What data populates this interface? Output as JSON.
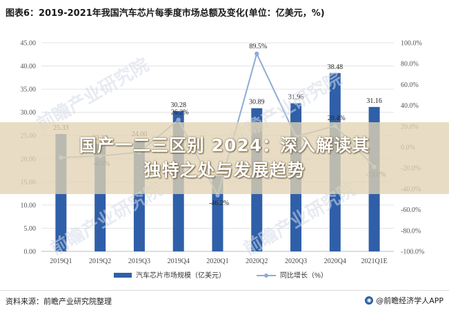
{
  "title": "图表6：2019-2021年我国汽车芯片每季度市场总额及变化(单位：亿美元，%)",
  "overlay": {
    "line1": "国产一二三区别 2024：深入解读其",
    "line2": "独特之处与发展趋势"
  },
  "watermark": "前瞻产业研究院",
  "footer": {
    "source": "资料来源：前瞻产业研究院整理",
    "brand": "@前瞻经济学人APP"
  },
  "chart_data": {
    "type": "bar",
    "categories": [
      "2019Q1",
      "2019Q2",
      "2019Q3",
      "2019Q4",
      "2020Q1",
      "2020Q2",
      "2020Q3",
      "2020Q4",
      "2021Q1E"
    ],
    "series": [
      {
        "name": "汽车芯片市场规模（亿美元）",
        "type": "bar",
        "axis": "left",
        "color": "#2f5fa8",
        "values": [
          25.33,
          23.18,
          24.0,
          30.28,
          16.3,
          30.89,
          31.96,
          38.48,
          31.16
        ],
        "labels": [
          "25.33",
          "23.18",
          "24.00",
          "30.28",
          "",
          "30.89",
          "31.96",
          "38.48",
          "31.16"
        ]
      },
      {
        "name": "同比增长（%）",
        "type": "line",
        "axis": "right",
        "color": "#8eaad6",
        "values": [
          -10.0,
          -8.5,
          -5.0,
          26.2,
          -46.2,
          89.5,
          10.0,
          20.4,
          -19.0
        ],
        "labels": [
          "",
          "-8.5%",
          "",
          "26.2%",
          "-46.2%",
          "89.5%",
          "",
          "20.4%",
          "-19.0%"
        ]
      }
    ],
    "y_left": {
      "min": 0,
      "max": 45,
      "step": 5,
      "tick_labels": [
        "0.00",
        "5.00",
        "10.00",
        "15.00",
        "20.00",
        "25.00",
        "30.00",
        "35.00",
        "40.00",
        "45.00"
      ]
    },
    "y_right": {
      "min": -100,
      "max": 100,
      "step": 20,
      "tick_labels": [
        "-100.0%",
        "-80.0%",
        "-60.0%",
        "-40.0%",
        "-20.0%",
        "0.0%",
        "20.0%",
        "40.0%",
        "60.0%",
        "80.0%",
        "100.0%"
      ]
    },
    "grid": true,
    "legend_position": "bottom"
  }
}
